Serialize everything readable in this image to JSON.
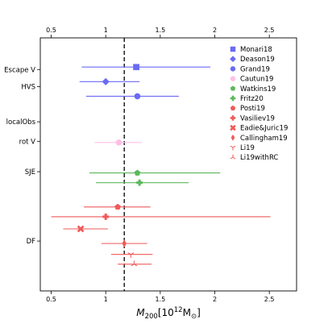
{
  "chart_data": {
    "type": "scatter",
    "subtype": "forest-plot-horizontal-errorbars",
    "x_axis": {
      "label_main": "M",
      "label_sub": "200",
      "label_units_prefix": "[10",
      "label_units_exp": "12",
      "label_units_suffix": "M",
      "label_units_sun": "⊙",
      "label_units_end": "]",
      "xlim": [
        0.4,
        2.75
      ],
      "ticks": [
        0.5,
        1.0,
        1.5,
        2.0,
        2.5
      ],
      "tick_labels": [
        "0.5",
        "1",
        "1.5",
        "2",
        "2.5"
      ],
      "mirror_top": true
    },
    "reference_line": {
      "x": 1.17,
      "style": "dashed",
      "color": "#000000"
    },
    "categories": [
      {
        "label": "Escape V",
        "y": 2.6
      },
      {
        "label": "HVS",
        "y": 4.0
      },
      {
        "label": "localObs",
        "y": 6.9
      },
      {
        "label": "rot V",
        "y": 8.5
      },
      {
        "label": "SJE",
        "y": 11.0
      },
      {
        "label": "DF",
        "y": 16.7
      }
    ],
    "ylim": [
      0,
      20.8
    ],
    "series": [
      {
        "name": "Monari18",
        "marker": "square",
        "color": "#6a6af5",
        "x": 1.28,
        "xerr_low": 0.78,
        "xerr_high": 1.96,
        "y": 2.4
      },
      {
        "name": "Deason19",
        "marker": "diamond",
        "color": "#6a6af5",
        "x": 1.0,
        "xerr_low": 0.76,
        "xerr_high": 1.31,
        "y": 3.6
      },
      {
        "name": "Grand19",
        "marker": "circle",
        "color": "#6a6af5",
        "x": 1.29,
        "xerr_low": 0.82,
        "xerr_high": 1.67,
        "y": 4.8
      },
      {
        "name": "Cautun19",
        "marker": "circle",
        "color": "#ffbfe6",
        "x": 1.12,
        "xerr_low": 0.9,
        "xerr_high": 1.33,
        "y": 8.6
      },
      {
        "name": "Watkins19",
        "marker": "pentagon",
        "color": "#5cb85c",
        "x": 1.29,
        "xerr_low": 0.85,
        "xerr_high": 2.05,
        "y": 11.1
      },
      {
        "name": "Fritz20",
        "marker": "plus",
        "color": "#5cb85c",
        "x": 1.31,
        "xerr_low": 0.91,
        "xerr_high": 1.76,
        "y": 11.9
      },
      {
        "name": "Posti19",
        "marker": "pentagon",
        "color": "#ef5a5a",
        "x": 1.11,
        "xerr_low": 0.8,
        "xerr_high": 1.41,
        "y": 13.9
      },
      {
        "name": "Vasiliev19",
        "marker": "plus",
        "color": "#ef5a5a",
        "x": 1.0,
        "xerr_low": 0.5,
        "xerr_high": 2.51,
        "y": 14.7
      },
      {
        "name": "Eadie&Juric19",
        "marker": "x",
        "color": "#ef5a5a",
        "x": 0.77,
        "xerr_low": 0.61,
        "xerr_high": 1.02,
        "y": 15.7
      },
      {
        "name": "Callingham19",
        "marker": "thin_diamond",
        "color": "#ef5a5a",
        "x": 1.17,
        "xerr_low": 0.96,
        "xerr_high": 1.38,
        "y": 16.9
      },
      {
        "name": "Li19",
        "marker": "tri_down",
        "color": "#ef5a5a",
        "x": 1.23,
        "xerr_low": 1.05,
        "xerr_high": 1.43,
        "y": 17.8
      },
      {
        "name": "Li19withRC",
        "marker": "tri_up",
        "color": "#ef5a5a",
        "x": 1.26,
        "xerr_low": 1.11,
        "xerr_high": 1.42,
        "y": 18.6
      }
    ],
    "legend": {
      "placement": "top-right"
    },
    "grid": false
  }
}
